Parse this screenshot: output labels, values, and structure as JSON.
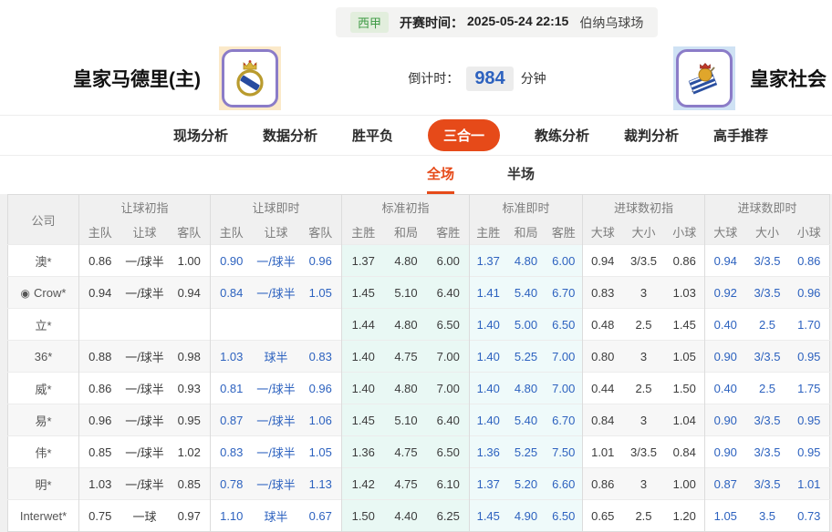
{
  "header": {
    "league": "西甲",
    "kickoff_label": "开赛时间：",
    "kickoff_time": "2025-05-24 22:15",
    "venue": "伯纳乌球场",
    "home_team": "皇家马德里(主)",
    "away_team": "皇家社会",
    "countdown_label": "倒计时：",
    "countdown_value": "984",
    "countdown_unit": "分钟"
  },
  "nav": {
    "items": [
      {
        "key": "live-analysis",
        "label": "现场分析",
        "active": false
      },
      {
        "key": "data-analysis",
        "label": "数据分析",
        "active": false
      },
      {
        "key": "win-draw-lose",
        "label": "胜平负",
        "active": false
      },
      {
        "key": "three-in-one",
        "label": "三合一",
        "active": true
      },
      {
        "key": "coach-analysis",
        "label": "教练分析",
        "active": false
      },
      {
        "key": "referee-analysis",
        "label": "裁判分析",
        "active": false
      },
      {
        "key": "expert-picks",
        "label": "高手推荐",
        "active": false
      }
    ]
  },
  "subtabs": {
    "items": [
      {
        "key": "full-match",
        "label": "全场",
        "active": true
      },
      {
        "key": "half-match",
        "label": "半场",
        "active": false
      }
    ]
  },
  "icons": {
    "soccer_ball": "◉"
  },
  "colors": {
    "accent_orange": "#e64a19",
    "odds_blue": "#2d62bf",
    "league_green": "#3d9a44",
    "league_green_bg": "#e2eedd",
    "std_init_bg": "#e9f8f4",
    "std_live_bg": "#effafa",
    "home_crest_bg": "#fbe9c9",
    "away_crest_bg": "#cfe2f4",
    "crest_border": "#8b7cc8"
  },
  "table": {
    "company_header": "公司",
    "groups": [
      {
        "key": "rang_init",
        "label": "让球初指",
        "cols": [
          "主队",
          "让球",
          "客队"
        ],
        "style": "plain"
      },
      {
        "key": "rang_live",
        "label": "让球即时",
        "cols": [
          "主队",
          "让球",
          "客队"
        ],
        "style": "blue"
      },
      {
        "key": "std_init",
        "label": "标准初指",
        "cols": [
          "主胜",
          "和局",
          "客胜"
        ],
        "style": "cyan"
      },
      {
        "key": "std_live",
        "label": "标准即时",
        "cols": [
          "主胜",
          "和局",
          "客胜"
        ],
        "style": "cyan-blue"
      },
      {
        "key": "goals_init",
        "label": "进球数初指",
        "cols": [
          "大球",
          "大小",
          "小球"
        ],
        "style": "plain"
      },
      {
        "key": "goals_live",
        "label": "进球数即时",
        "cols": [
          "大球",
          "大小",
          "小球"
        ],
        "style": "blue"
      }
    ],
    "rows": [
      {
        "company": "澳*",
        "icon": false,
        "rang_init": [
          "0.86",
          "一/球半",
          "1.00"
        ],
        "rang_live": [
          "0.90",
          "一/球半",
          "0.96"
        ],
        "std_init": [
          "1.37",
          "4.80",
          "6.00"
        ],
        "std_live": [
          "1.37",
          "4.80",
          "6.00"
        ],
        "goals_init": [
          "0.94",
          "3/3.5",
          "0.86"
        ],
        "goals_live": [
          "0.94",
          "3/3.5",
          "0.86"
        ]
      },
      {
        "company": "Crow*",
        "icon": true,
        "rang_init": [
          "0.94",
          "一/球半",
          "0.94"
        ],
        "rang_live": [
          "0.84",
          "一/球半",
          "1.05"
        ],
        "std_init": [
          "1.45",
          "5.10",
          "6.40"
        ],
        "std_live": [
          "1.41",
          "5.40",
          "6.70"
        ],
        "goals_init": [
          "0.83",
          "3",
          "1.03"
        ],
        "goals_live": [
          "0.92",
          "3/3.5",
          "0.96"
        ]
      },
      {
        "company": "立*",
        "icon": false,
        "rang_init": [
          "",
          "",
          ""
        ],
        "rang_live": [
          "",
          "",
          ""
        ],
        "std_init": [
          "1.44",
          "4.80",
          "6.50"
        ],
        "std_live": [
          "1.40",
          "5.00",
          "6.50"
        ],
        "goals_init": [
          "0.48",
          "2.5",
          "1.45"
        ],
        "goals_live": [
          "0.40",
          "2.5",
          "1.70"
        ]
      },
      {
        "company": "36*",
        "icon": false,
        "rang_init": [
          "0.88",
          "一/球半",
          "0.98"
        ],
        "rang_live": [
          "1.03",
          "球半",
          "0.83"
        ],
        "std_init": [
          "1.40",
          "4.75",
          "7.00"
        ],
        "std_live": [
          "1.40",
          "5.25",
          "7.00"
        ],
        "goals_init": [
          "0.80",
          "3",
          "1.05"
        ],
        "goals_live": [
          "0.90",
          "3/3.5",
          "0.95"
        ]
      },
      {
        "company": "威*",
        "icon": false,
        "rang_init": [
          "0.86",
          "一/球半",
          "0.93"
        ],
        "rang_live": [
          "0.81",
          "一/球半",
          "0.96"
        ],
        "std_init": [
          "1.40",
          "4.80",
          "7.00"
        ],
        "std_live": [
          "1.40",
          "4.80",
          "7.00"
        ],
        "goals_init": [
          "0.44",
          "2.5",
          "1.50"
        ],
        "goals_live": [
          "0.40",
          "2.5",
          "1.75"
        ]
      },
      {
        "company": "易*",
        "icon": false,
        "rang_init": [
          "0.96",
          "一/球半",
          "0.95"
        ],
        "rang_live": [
          "0.87",
          "一/球半",
          "1.06"
        ],
        "std_init": [
          "1.45",
          "5.10",
          "6.40"
        ],
        "std_live": [
          "1.40",
          "5.40",
          "6.70"
        ],
        "goals_init": [
          "0.84",
          "3",
          "1.04"
        ],
        "goals_live": [
          "0.90",
          "3/3.5",
          "0.95"
        ]
      },
      {
        "company": "伟*",
        "icon": false,
        "rang_init": [
          "0.85",
          "一/球半",
          "1.02"
        ],
        "rang_live": [
          "0.83",
          "一/球半",
          "1.05"
        ],
        "std_init": [
          "1.36",
          "4.75",
          "6.50"
        ],
        "std_live": [
          "1.36",
          "5.25",
          "7.50"
        ],
        "goals_init": [
          "1.01",
          "3/3.5",
          "0.84"
        ],
        "goals_live": [
          "0.90",
          "3/3.5",
          "0.95"
        ]
      },
      {
        "company": "明*",
        "icon": false,
        "rang_init": [
          "1.03",
          "一/球半",
          "0.85"
        ],
        "rang_live": [
          "0.78",
          "一/球半",
          "1.13"
        ],
        "std_init": [
          "1.42",
          "4.75",
          "6.10"
        ],
        "std_live": [
          "1.37",
          "5.20",
          "6.60"
        ],
        "goals_init": [
          "0.86",
          "3",
          "1.00"
        ],
        "goals_live": [
          "0.87",
          "3/3.5",
          "1.01"
        ]
      },
      {
        "company": "Interwet*",
        "icon": false,
        "rang_init": [
          "0.75",
          "一球",
          "0.97"
        ],
        "rang_live": [
          "1.10",
          "球半",
          "0.67"
        ],
        "std_init": [
          "1.50",
          "4.40",
          "6.25"
        ],
        "std_live": [
          "1.45",
          "4.90",
          "6.50"
        ],
        "goals_init": [
          "0.65",
          "2.5",
          "1.20"
        ],
        "goals_live": [
          "1.05",
          "3.5",
          "0.73"
        ]
      }
    ]
  }
}
